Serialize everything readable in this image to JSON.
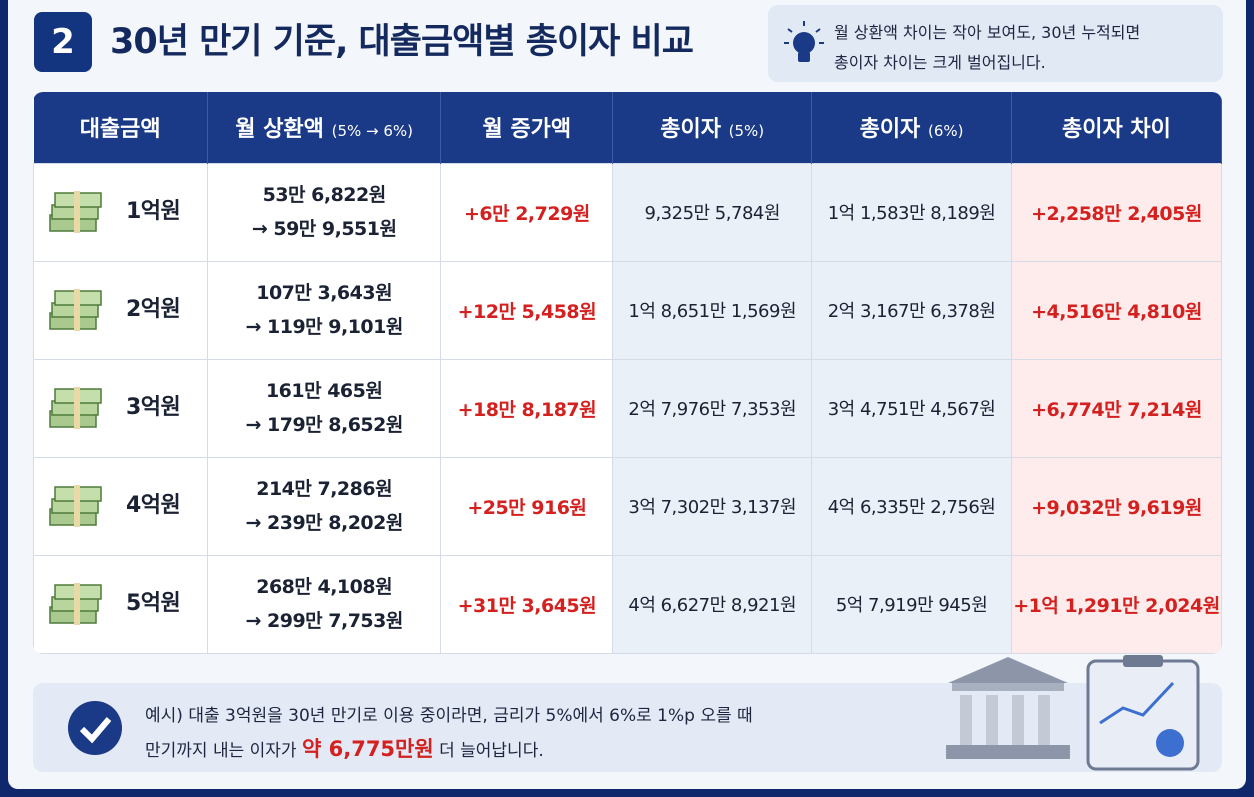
{
  "header": {
    "badge": "2",
    "title": "30년 만기 기준, 대출금액별 총이자 비교",
    "tip": [
      "월 상환액 차이는 작아 보여도, 30년 누적되면",
      "총이자 차이는 크게 벌어집니다."
    ]
  },
  "table": {
    "headers": [
      {
        "text": "대출금액"
      },
      {
        "text": "월 상환액",
        "sub": "(5% → 6%)"
      },
      {
        "text": "월 증가액"
      },
      {
        "text": "총이자",
        "sub": "(5%)"
      },
      {
        "text": "총이자",
        "sub": "(6%)"
      },
      {
        "text": "총이자 차이"
      }
    ],
    "rows": [
      [
        "1억원",
        [
          "53만 6,822원",
          "→ 59만 9,551원"
        ],
        "+6만 2,729원",
        "9,325만 5,784원",
        "1억 1,583만 8,189원",
        "+2,258만 2,405원"
      ],
      [
        "2억원",
        [
          "107만 3,643원",
          "→ 119만 9,101원"
        ],
        "+12만 5,458원",
        "1억 8,651만 1,569원",
        "2억 3,167만 6,378원",
        "+4,516만 4,810원"
      ],
      [
        "3억원",
        [
          "161만 465원",
          "→ 179만 8,652원"
        ],
        "+18만 8,187원",
        "2억 7,976만 7,353원",
        "3억 4,751만 4,567원",
        "+6,774만 7,214원"
      ],
      [
        "4억원",
        [
          "214만 7,286원",
          "→ 239만 8,202원"
        ],
        "+25만 916원",
        "3억 7,302만 3,137원",
        "4억 6,335만 2,756원",
        "+9,032만 9,619원"
      ],
      [
        "5억원",
        [
          "268만 4,108원",
          "→ 299만 7,753원"
        ],
        "+31만 3,645원",
        "4억 6,627만 8,921원",
        "5억 7,919만 945원",
        "+1억 1,291만 2,024원"
      ]
    ]
  },
  "footer": {
    "line1": "예시) 대출 3억원을 30년 만기로 이용 중이라면, 금리가 5%에서 6%로 1%p 오를 때",
    "line2_start": "만기까지 내는 이자가 ",
    "highlight": "약 6,775만원",
    "line2_end": " 더 늘어납니다."
  }
}
